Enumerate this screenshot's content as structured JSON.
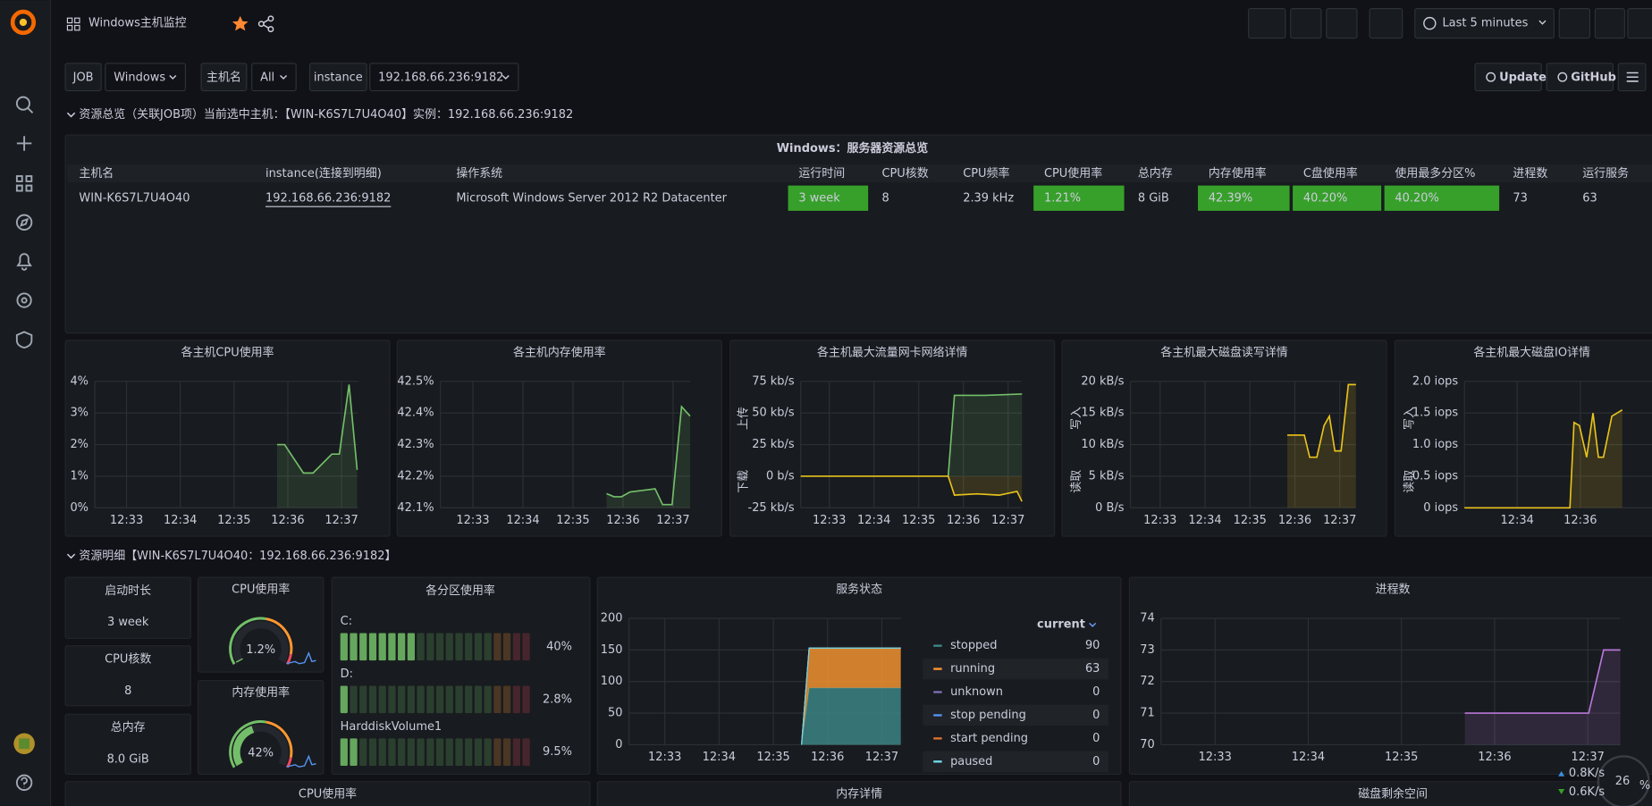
{
  "header": {
    "title": "Windows主机监控",
    "time_range": "Last 5 minutes"
  },
  "variables": [
    {
      "label": "JOB",
      "value": "Windows"
    },
    {
      "label": "主机名",
      "value": "All"
    },
    {
      "label": "instance",
      "value": "192.168.66.236:9182"
    }
  ],
  "links": [
    "Update",
    "GitHub"
  ],
  "rows": [
    "资源总览（关联JOB项）当前选中主机：【WIN-K6S7L7U4O40】实例：192.168.66.236:9182",
    "资源明细【WIN-K6S7L7U4O40：192.168.66.236:9182】"
  ],
  "table": {
    "title": "Windows：服务器资源总览",
    "columns": [
      {
        "title": "主机名"
      },
      {
        "title": "instance(连接到明细)"
      },
      {
        "title": "操作系统"
      },
      {
        "title": "运行时间",
        "cell_color": "#37a02a"
      },
      {
        "title": "CPU核数"
      },
      {
        "title": "CPU频率"
      },
      {
        "title": "CPU使用率",
        "cell_color": "#37a02a"
      },
      {
        "title": "总内存"
      },
      {
        "title": "内存使用率",
        "cell_color": "#37a02a"
      },
      {
        "title": "C盘使用率",
        "cell_color": "#37a02a"
      },
      {
        "title": "使用最多分区%",
        "cell_color": "#37a02a"
      },
      {
        "title": "进程数"
      },
      {
        "title": "运行服务"
      }
    ],
    "rows": [
      [
        "WIN-K6S7L7U4O40",
        "192.168.66.236:9182",
        "Microsoft Windows Server 2012 R2 Datacenter",
        "3 week",
        8,
        "2.39 kHz",
        "1.21%",
        "8 GiB",
        "42.39%",
        "40.20%",
        "40.20%",
        73,
        63
      ]
    ]
  },
  "graphs": [
    {
      "type": "line",
      "title": "各主机CPU使用率",
      "xlim": [
        32.41,
        37.31
      ],
      "xticks": [
        {
          "value": 33,
          "label": "12:33"
        },
        {
          "value": 34,
          "label": "12:34"
        },
        {
          "value": 35,
          "label": "12:35"
        },
        {
          "value": 36,
          "label": "12:36"
        },
        {
          "value": 37,
          "label": "12:37"
        }
      ],
      "ylim": [
        0,
        4
      ],
      "yticks": [
        {
          "value": 0,
          "label": "0%"
        },
        {
          "value": 1,
          "label": "1%"
        },
        {
          "value": 2,
          "label": "2%"
        },
        {
          "value": 3,
          "label": "3%"
        },
        {
          "value": 4,
          "label": "4%"
        }
      ],
      "series": [
        {
          "color": "#73bf69",
          "x": [
            35.8,
            35.94,
            36.29,
            36.47,
            36.82,
            36.96,
            37.14,
            37.29
          ],
          "values": [
            2,
            2,
            1.1,
            1.1,
            1.7,
            1.7,
            3.9,
            1.2
          ]
        }
      ]
    },
    {
      "type": "line",
      "title": "各主机内存使用率",
      "xlim": [
        32.35,
        37.34
      ],
      "xticks": [
        {
          "value": 33,
          "label": "12:33"
        },
        {
          "value": 34,
          "label": "12:34"
        },
        {
          "value": 35,
          "label": "12:35"
        },
        {
          "value": 36,
          "label": "12:36"
        },
        {
          "value": 37,
          "label": "12:37"
        }
      ],
      "ylim": [
        42.1,
        42.5
      ],
      "yticks": [
        {
          "value": 42.1,
          "label": "42.1%"
        },
        {
          "value": 42.2,
          "label": "42.2%"
        },
        {
          "value": 42.3,
          "label": "42.3%"
        },
        {
          "value": 42.4,
          "label": "42.4%"
        },
        {
          "value": 42.5,
          "label": "42.5%"
        }
      ],
      "series": [
        {
          "color": "#73bf69",
          "x": [
            35.67,
            35.82,
            35.97,
            36.14,
            36.39,
            36.64,
            36.79,
            36.98,
            37.17,
            37.34
          ],
          "values": [
            42.145,
            42.135,
            42.135,
            42.15,
            42.155,
            42.16,
            42.11,
            42.11,
            42.42,
            42.39
          ]
        }
      ]
    },
    {
      "type": "line",
      "title": "各主机最大流量网卡网络详情",
      "xlim": [
        32.36,
        37.31
      ],
      "xticks": [
        {
          "value": 33,
          "label": "12:33"
        },
        {
          "value": 34,
          "label": "12:34"
        },
        {
          "value": 35,
          "label": "12:35"
        },
        {
          "value": 36,
          "label": "12:36"
        },
        {
          "value": 37,
          "label": "12:37"
        }
      ],
      "ylim": [
        -25,
        75
      ],
      "yticks": [
        {
          "value": -25,
          "label": "-25 kb/s"
        },
        {
          "value": 0,
          "label": "0 b/s"
        },
        {
          "value": 25,
          "label": "25 kb/s"
        },
        {
          "value": 50,
          "label": "50 kb/s"
        },
        {
          "value": 75,
          "label": "75 kb/s"
        }
      ],
      "y_label_top": "上传",
      "y_label_bottom": "下载",
      "series": [
        {
          "color": "#73bf69",
          "x": [
            35.66,
            35.8,
            36.5,
            37.31
          ],
          "values": [
            0,
            64,
            64,
            65
          ]
        },
        {
          "color": "#e8c21c",
          "x": [
            32.36,
            35.66,
            35.8,
            36.3,
            36.8,
            37.2,
            37.31
          ],
          "values": [
            0,
            0,
            -15,
            -14,
            -15,
            -12,
            -20
          ]
        }
      ]
    },
    {
      "type": "line",
      "title": "各主机最大磁盘读写详情",
      "xlim": [
        32.34,
        37.36
      ],
      "xticks": [
        {
          "value": 33,
          "label": "12:33"
        },
        {
          "value": 34,
          "label": "12:34"
        },
        {
          "value": 35,
          "label": "12:35"
        },
        {
          "value": 36,
          "label": "12:36"
        },
        {
          "value": 37,
          "label": "12:37"
        }
      ],
      "ylim": [
        0,
        20
      ],
      "yticks": [
        {
          "value": 0,
          "label": "0 B/s"
        },
        {
          "value": 5,
          "label": "5 kB/s"
        },
        {
          "value": 10,
          "label": "10 kB/s"
        },
        {
          "value": 15,
          "label": "15 kB/s"
        },
        {
          "value": 20,
          "label": "20 kB/s"
        }
      ],
      "y_label_top": "写入",
      "y_label_bottom": "读取",
      "series": [
        {
          "color": "#e8c21c",
          "x": [
            35.83,
            36.21,
            36.33,
            36.49,
            36.65,
            36.77,
            36.89,
            37.03,
            37.19,
            37.36
          ],
          "values": [
            11.5,
            11.5,
            8,
            8,
            13,
            14.5,
            9,
            9,
            19.5,
            19.5
          ]
        }
      ]
    },
    {
      "type": "line",
      "title": "各主机最大磁盘IO详情",
      "xlim": [
        32.33,
        38.27
      ],
      "xticks": [
        {
          "value": 34,
          "label": "12:34"
        },
        {
          "value": 36,
          "label": "12:36"
        }
      ],
      "ylim": [
        0,
        2
      ],
      "yticks": [
        {
          "value": 0,
          "label": "0 iops"
        },
        {
          "value": 0.5,
          "label": "0.5 iops"
        },
        {
          "value": 1,
          "label": "1.0 iops"
        },
        {
          "value": 1.5,
          "label": "1.5 iops"
        },
        {
          "value": 2,
          "label": "2.0 iops"
        }
      ],
      "y_label_top": "写入",
      "y_label_bottom": "读取",
      "series": [
        {
          "color": "#e8c21c",
          "x": [
            32.33,
            35.67,
            35.8,
            35.97,
            36.2,
            36.4,
            36.57,
            36.73,
            37.0,
            37.33
          ],
          "values": [
            0,
            0,
            1.35,
            1.3,
            0.8,
            1.5,
            0.8,
            0.8,
            1.45,
            1.55
          ]
        }
      ]
    },
    {
      "type": "area",
      "title": "服务状态",
      "stacked": true,
      "xlim": [
        32.34,
        37.35
      ],
      "xticks": [
        {
          "value": 33,
          "label": "12:33"
        },
        {
          "value": 34,
          "label": "12:34"
        },
        {
          "value": 35,
          "label": "12:35"
        },
        {
          "value": 36,
          "label": "12:36"
        },
        {
          "value": 37,
          "label": "12:37"
        }
      ],
      "ylim": [
        0,
        200
      ],
      "yticks": [
        0,
        50,
        100,
        150,
        200
      ],
      "x": [
        35.52,
        35.66,
        37.35
      ],
      "legend": {
        "header": "current"
      },
      "series": [
        {
          "name": "stopped",
          "color": "#3d8a8a",
          "values": [
            0,
            90,
            90
          ]
        },
        {
          "name": "running",
          "color": "#ff9830",
          "values": [
            0,
            63,
            63
          ]
        },
        {
          "name": "unknown",
          "color": "#806eb7",
          "values": [
            0,
            0,
            0
          ]
        },
        {
          "name": "stop pending",
          "color": "#5794f2",
          "values": [
            0,
            0,
            0
          ]
        },
        {
          "name": "start pending",
          "color": "#e0752d",
          "values": [
            0,
            0,
            0
          ]
        },
        {
          "name": "paused",
          "color": "#70dbed",
          "values": [
            0,
            0,
            0
          ]
        }
      ]
    },
    {
      "type": "line",
      "title": "进程数",
      "xlim": [
        32.42,
        37.35
      ],
      "xticks": [
        {
          "value": 33,
          "label": "12:33"
        },
        {
          "value": 34,
          "label": "12:34"
        },
        {
          "value": 35,
          "label": "12:35"
        },
        {
          "value": 36,
          "label": "12:36"
        },
        {
          "value": 37,
          "label": "12:37"
        }
      ],
      "ylim": [
        70,
        74
      ],
      "yticks": [
        70,
        71,
        72,
        73,
        74
      ],
      "series": [
        {
          "color": "#b877d9",
          "x": [
            35.68,
            37.01,
            37.17,
            37.35
          ],
          "values": [
            71,
            71,
            73,
            73
          ]
        }
      ]
    }
  ],
  "stats": [
    {
      "title": "启动时长",
      "value": "3 week",
      "color": "#73bf69"
    },
    {
      "title": "CPU核数",
      "value": 8,
      "color": "#73bf69"
    },
    {
      "title": "总内存",
      "value": "8.0 GiB",
      "color": "#73bf69"
    }
  ],
  "gauges": [
    {
      "title": "CPU使用率",
      "value": 1.2,
      "value_label": "1.2%",
      "min": 0,
      "max": 100,
      "color": "#73bf69"
    },
    {
      "title": "内存使用率",
      "value": 42,
      "value_label": "42%",
      "min": 0,
      "max": 100,
      "color": "#73bf69"
    }
  ],
  "bar_gauge": {
    "title": "各分区使用率",
    "categories": [
      "C:",
      "D:",
      "HarddiskVolume1"
    ],
    "values": [
      40,
      2.8,
      9.5
    ],
    "value_labels": [
      "40%",
      "2.8%",
      "9.5%"
    ],
    "max": 100,
    "color": "#73bf69"
  },
  "bottom_panels": [
    "CPU使用率",
    "内存详情",
    "磁盘剩余空间"
  ],
  "overlay": {
    "value": "26",
    "unit": "%",
    "up": "0.8K/s",
    "down": "0.6K/s"
  }
}
